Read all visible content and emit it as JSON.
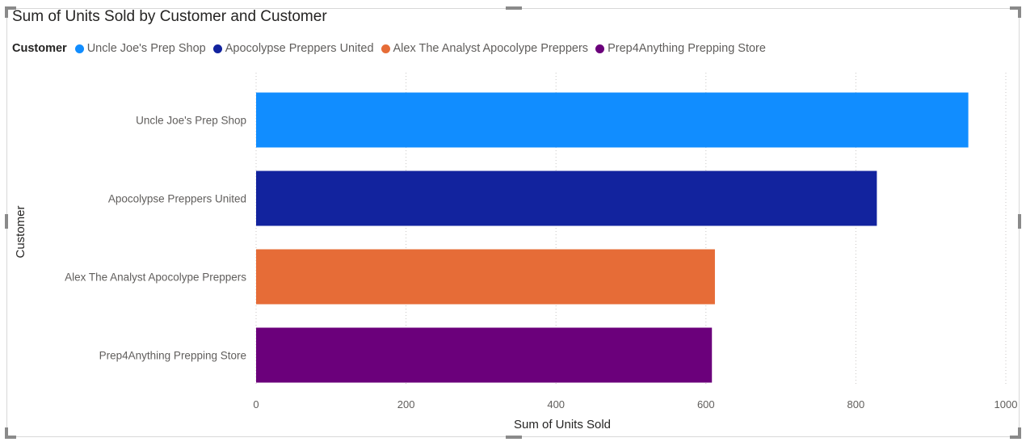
{
  "chart_data": {
    "type": "bar",
    "orientation": "horizontal",
    "title": "Sum of Units Sold by Customer and Customer",
    "legend": {
      "title": "Customer",
      "placement": "top-left",
      "items": [
        {
          "name": "Uncle Joe's Prep Shop",
          "color": "#118DFF"
        },
        {
          "name": "Apocolypse Preppers United",
          "color": "#12239E"
        },
        {
          "name": "Alex The Analyst Apocolype Preppers",
          "color": "#E66C37"
        },
        {
          "name": "Prep4Anything Prepping Store",
          "color": "#6B007B"
        }
      ]
    },
    "categories": [
      "Uncle Joe's Prep Shop",
      "Apocolypse Preppers United",
      "Alex The Analyst Apocolype Preppers",
      "Prep4Anything Prepping Store"
    ],
    "values": [
      950,
      828,
      612,
      608
    ],
    "colors": [
      "#118DFF",
      "#12239E",
      "#E66C37",
      "#6B007B"
    ],
    "xlabel": "Sum of Units Sold",
    "ylabel": "Customer",
    "xlim": [
      0,
      1000
    ],
    "xticks": [
      0,
      200,
      400,
      600,
      800,
      1000
    ],
    "grid": "vertical-dotted"
  }
}
